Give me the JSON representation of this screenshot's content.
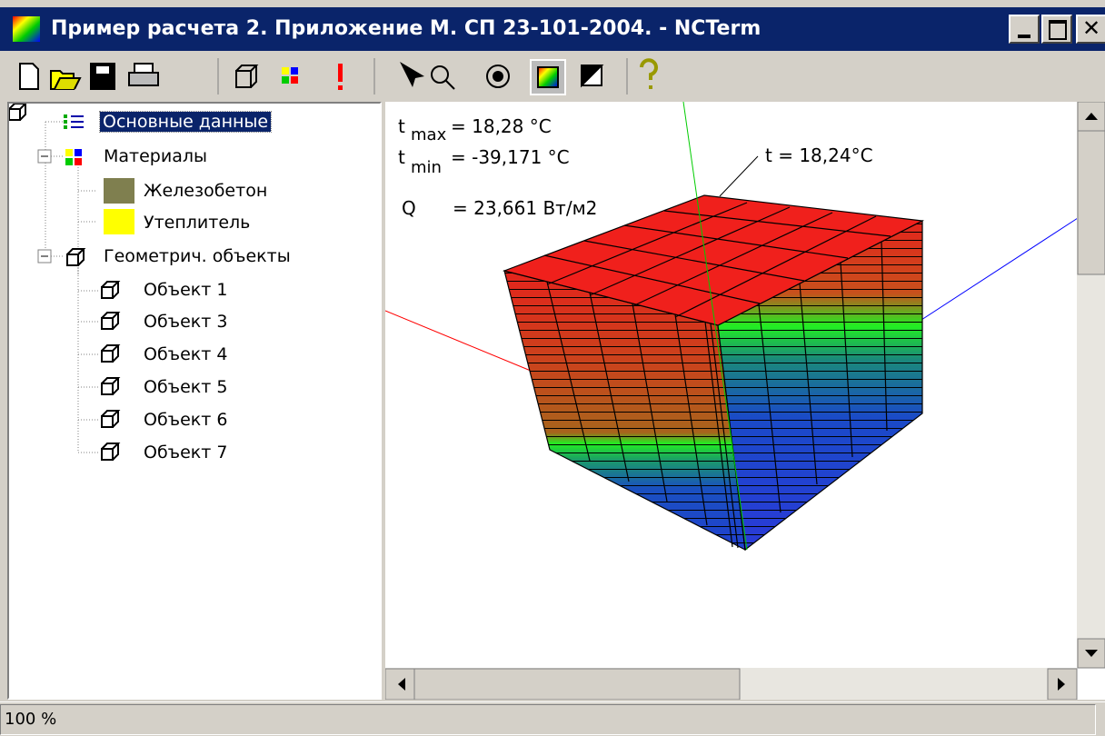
{
  "window": {
    "title": "Пример расчета 2. Приложение М. СП 23-101-2004. - NCTerm"
  },
  "tree": {
    "nodes": [
      {
        "label": "Основные данные"
      },
      {
        "label": "Материалы",
        "children": [
          {
            "label": "Железобетон"
          },
          {
            "label": "Утеплитель"
          }
        ]
      },
      {
        "label": "Геометрич. объекты",
        "children": [
          {
            "label": "Объект 1"
          },
          {
            "label": "Объект 3"
          },
          {
            "label": "Объект 4"
          },
          {
            "label": "Объект 5"
          },
          {
            "label": "Объект 6"
          },
          {
            "label": "Объект 7"
          }
        ]
      }
    ]
  },
  "viewport": {
    "tmax": {
      "symbol": "t",
      "sub": "max",
      "value": "= 18,28 °C"
    },
    "tmin": {
      "symbol": "t",
      "sub": "min",
      "value": "= -39,171 °C"
    },
    "q": {
      "symbol": "Q",
      "value": "= 23,661 Вт/м2"
    },
    "callout": "t = 18,24°C"
  },
  "status": {
    "zoom": "100 %"
  }
}
